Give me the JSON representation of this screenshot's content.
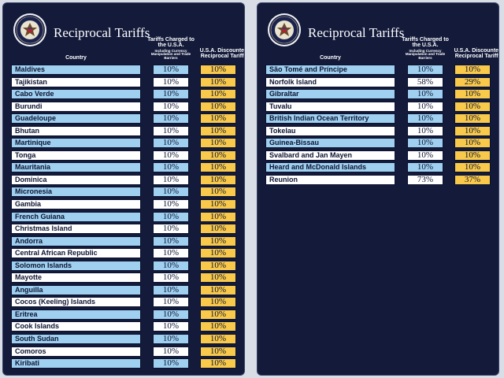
{
  "colors": {
    "background": "#131a3a",
    "row_blue": "#9fd0f0",
    "row_white": "#ffffff",
    "discount": "#f8c94a"
  },
  "panels": [
    {
      "title": "Reciprocal Tariffs",
      "headers": {
        "country": "Country",
        "charged": "Tariffs Charged to the U.S.A.",
        "charged_sub": "Including Currency Manipulation and Trade Barriers",
        "discounted": "U.S.A. Discounted Reciprocal Tariffs"
      },
      "rows": [
        {
          "country": "Maldives",
          "charged": "10%",
          "discounted": "10%"
        },
        {
          "country": "Tajikistan",
          "charged": "10%",
          "discounted": "10%"
        },
        {
          "country": "Cabo Verde",
          "charged": "10%",
          "discounted": "10%"
        },
        {
          "country": "Burundi",
          "charged": "10%",
          "discounted": "10%"
        },
        {
          "country": "Guadeloupe",
          "charged": "10%",
          "discounted": "10%"
        },
        {
          "country": "Bhutan",
          "charged": "10%",
          "discounted": "10%"
        },
        {
          "country": "Martinique",
          "charged": "10%",
          "discounted": "10%"
        },
        {
          "country": "Tonga",
          "charged": "10%",
          "discounted": "10%"
        },
        {
          "country": "Mauritania",
          "charged": "10%",
          "discounted": "10%"
        },
        {
          "country": "Dominica",
          "charged": "10%",
          "discounted": "10%"
        },
        {
          "country": "Micronesia",
          "charged": "10%",
          "discounted": "10%"
        },
        {
          "country": "Gambia",
          "charged": "10%",
          "discounted": "10%"
        },
        {
          "country": "French Guiana",
          "charged": "10%",
          "discounted": "10%"
        },
        {
          "country": "Christmas Island",
          "charged": "10%",
          "discounted": "10%"
        },
        {
          "country": "Andorra",
          "charged": "10%",
          "discounted": "10%"
        },
        {
          "country": "Central African Republic",
          "charged": "10%",
          "discounted": "10%"
        },
        {
          "country": "Solomon Islands",
          "charged": "10%",
          "discounted": "10%"
        },
        {
          "country": "Mayotte",
          "charged": "10%",
          "discounted": "10%"
        },
        {
          "country": "Anguilla",
          "charged": "10%",
          "discounted": "10%"
        },
        {
          "country": "Cocos (Keeling) Islands",
          "charged": "10%",
          "discounted": "10%"
        },
        {
          "country": "Eritrea",
          "charged": "10%",
          "discounted": "10%"
        },
        {
          "country": "Cook Islands",
          "charged": "10%",
          "discounted": "10%"
        },
        {
          "country": "South Sudan",
          "charged": "10%",
          "discounted": "10%"
        },
        {
          "country": "Comoros",
          "charged": "10%",
          "discounted": "10%"
        },
        {
          "country": "Kiribati",
          "charged": "10%",
          "discounted": "10%"
        }
      ]
    },
    {
      "title": "Reciprocal Tariffs",
      "headers": {
        "country": "Country",
        "charged": "Tariffs Charged to the U.S.A.",
        "charged_sub": "Including Currency Manipulation and Trade Barriers",
        "discounted": "U.S.A. Discounted Reciprocal Tariffs"
      },
      "rows": [
        {
          "country": "São Tomé and Príncipe",
          "charged": "10%",
          "discounted": "10%"
        },
        {
          "country": "Norfolk Island",
          "charged": "58%",
          "discounted": "29%"
        },
        {
          "country": "Gibraltar",
          "charged": "10%",
          "discounted": "10%"
        },
        {
          "country": "Tuvalu",
          "charged": "10%",
          "discounted": "10%"
        },
        {
          "country": "British Indian Ocean Territory",
          "charged": "10%",
          "discounted": "10%"
        },
        {
          "country": "Tokelau",
          "charged": "10%",
          "discounted": "10%"
        },
        {
          "country": "Guinea-Bissau",
          "charged": "10%",
          "discounted": "10%"
        },
        {
          "country": "Svalbard and Jan Mayen",
          "charged": "10%",
          "discounted": "10%"
        },
        {
          "country": "Heard and McDonald Islands",
          "charged": "10%",
          "discounted": "10%"
        },
        {
          "country": "Reunion",
          "charged": "73%",
          "discounted": "37%"
        }
      ]
    }
  ]
}
